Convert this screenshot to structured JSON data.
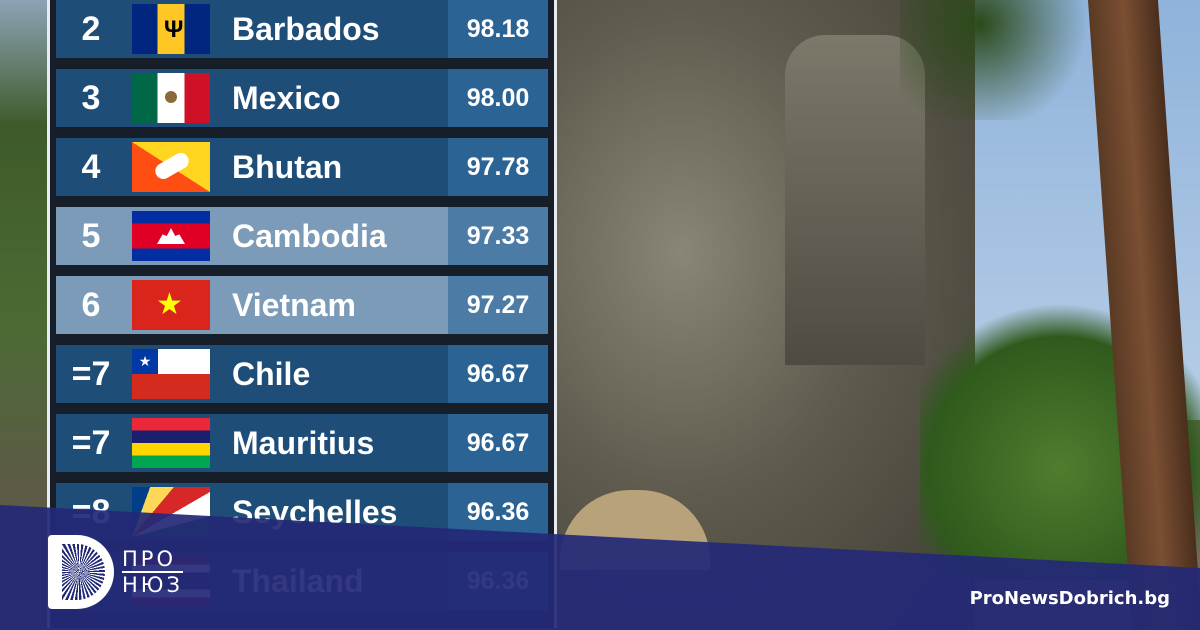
{
  "ranking": [
    {
      "rank": "2",
      "country": "Barbados",
      "score": "98.18",
      "highlight": false,
      "flag": "barbados"
    },
    {
      "rank": "3",
      "country": "Mexico",
      "score": "98.00",
      "highlight": false,
      "flag": "mexico"
    },
    {
      "rank": "4",
      "country": "Bhutan",
      "score": "97.78",
      "highlight": false,
      "flag": "bhutan"
    },
    {
      "rank": "5",
      "country": "Cambodia",
      "score": "97.33",
      "highlight": true,
      "flag": "cambodia"
    },
    {
      "rank": "6",
      "country": "Vietnam",
      "score": "97.27",
      "highlight": true,
      "flag": "vietnam"
    },
    {
      "rank": "=7",
      "country": "Chile",
      "score": "96.67",
      "highlight": false,
      "flag": "chile"
    },
    {
      "rank": "=7",
      "country": "Mauritius",
      "score": "96.67",
      "highlight": false,
      "flag": "mauritius"
    },
    {
      "rank": "=8",
      "country": "Seychelles",
      "score": "96.36",
      "highlight": false,
      "flag": "seychelles"
    },
    {
      "rank": "",
      "country": "Thailand",
      "score": "96.36",
      "highlight": false,
      "flag": "thailand"
    }
  ],
  "logo": {
    "line1": "ПРО",
    "line2": "НЮЗ"
  },
  "site": "ProNewsDobrich.bg",
  "colors": {
    "row": "#1e4d78",
    "row_highlight": "#7c9bb9",
    "band": "#242976"
  }
}
